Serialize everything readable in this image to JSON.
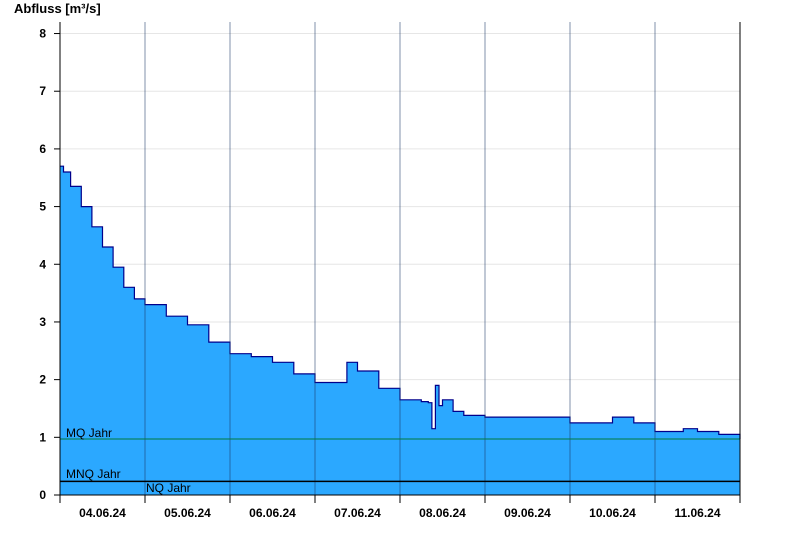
{
  "chart_data": {
    "type": "area",
    "ylabel": "Abfluss [m³/s]",
    "ylim": [
      0,
      8.2
    ],
    "yticks": [
      0,
      1,
      2,
      3,
      4,
      5,
      6,
      7,
      8
    ],
    "xlim": [
      "2024-06-04T00:00",
      "2024-06-12T00:00"
    ],
    "xtick_labels": [
      "04.06.24",
      "05.06.24",
      "06.06.24",
      "07.06.24",
      "08.06.24",
      "09.06.24",
      "10.06.24",
      "11.06.24"
    ],
    "grid": true,
    "fill_color": "#2ba8ff",
    "line_color": "#00008b",
    "reference_lines": [
      {
        "label": "MQ Jahr",
        "value": 0.97,
        "color": "#007a3d"
      },
      {
        "label": "MNQ Jahr",
        "value": 0.24,
        "color": "#000000"
      },
      {
        "label": "NQ Jahr",
        "value": 0.24,
        "color": "#000000"
      }
    ],
    "series": [
      {
        "x": [
          "2024-06-04T00:00",
          "2024-06-04T01:00",
          "2024-06-04T03:00",
          "2024-06-04T06:00",
          "2024-06-04T09:00",
          "2024-06-04T12:00",
          "2024-06-04T15:00",
          "2024-06-04T18:00",
          "2024-06-04T21:00",
          "2024-06-05T00:00",
          "2024-06-05T06:00",
          "2024-06-05T12:00",
          "2024-06-05T18:00",
          "2024-06-06T00:00",
          "2024-06-06T06:00",
          "2024-06-06T12:00",
          "2024-06-06T18:00",
          "2024-06-07T00:00",
          "2024-06-07T06:00",
          "2024-06-07T09:00",
          "2024-06-07T12:00",
          "2024-06-07T18:00",
          "2024-06-08T00:00",
          "2024-06-08T06:00",
          "2024-06-08T08:00",
          "2024-06-08T09:00",
          "2024-06-08T10:00",
          "2024-06-08T11:00",
          "2024-06-08T12:00",
          "2024-06-08T15:00",
          "2024-06-08T18:00",
          "2024-06-09T00:00",
          "2024-06-09T12:00",
          "2024-06-10T00:00",
          "2024-06-10T09:00",
          "2024-06-10T12:00",
          "2024-06-10T18:00",
          "2024-06-11T00:00",
          "2024-06-11T08:00",
          "2024-06-11T12:00",
          "2024-06-11T18:00",
          "2024-06-12T00:00"
        ],
        "y": [
          5.7,
          5.6,
          5.35,
          5.0,
          4.65,
          4.3,
          3.95,
          3.6,
          3.4,
          3.3,
          3.1,
          2.95,
          2.65,
          2.45,
          2.4,
          2.3,
          2.1,
          1.95,
          1.95,
          2.3,
          2.15,
          1.85,
          1.65,
          1.62,
          1.6,
          1.15,
          1.9,
          1.55,
          1.65,
          1.45,
          1.38,
          1.35,
          1.35,
          1.25,
          1.25,
          1.35,
          1.25,
          1.1,
          1.15,
          1.1,
          1.05,
          0.97
        ]
      }
    ]
  }
}
